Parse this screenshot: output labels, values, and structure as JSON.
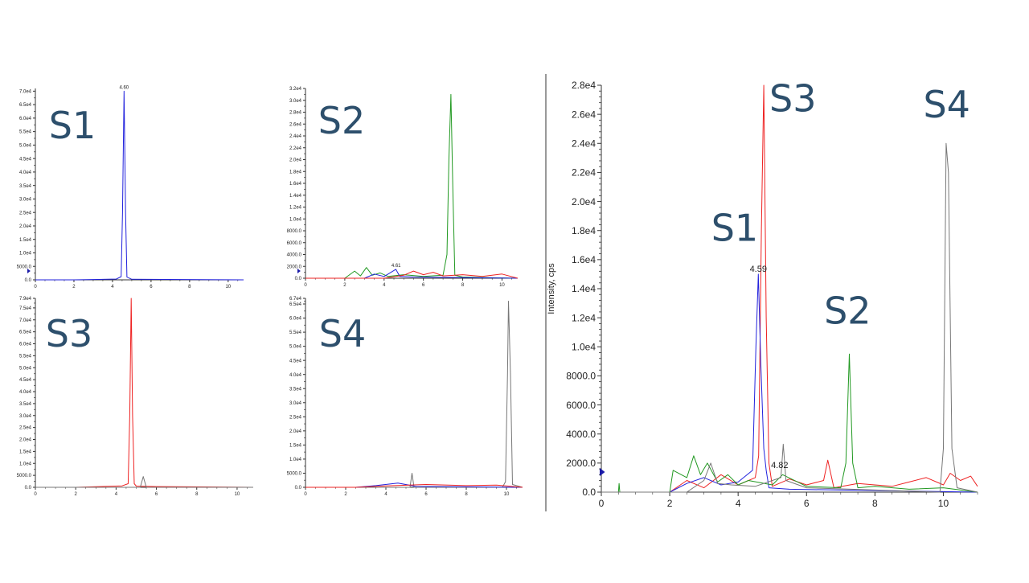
{
  "colors": {
    "S1": "#2222dd",
    "S2": "#229922",
    "S3": "#ee2222",
    "S4": "#777777",
    "label": "#2d4f6c",
    "axis": "#333333"
  },
  "chart_data": [
    {
      "id": "S1",
      "type": "line",
      "panel_label": "S1",
      "ylabel": "",
      "xlim": [
        0,
        10.8
      ],
      "ylim": [
        0,
        71000
      ],
      "yticks": [
        0,
        5000,
        10000,
        15000,
        20000,
        25000,
        30000,
        35000,
        40000,
        45000,
        50000,
        55000,
        60000,
        65000,
        70000
      ],
      "ytick_labels": [
        "0.0",
        "5000.0",
        "1.0e4",
        "1.5e4",
        "2.0e4",
        "2.5e4",
        "3.0e4",
        "3.5e4",
        "4.0e4",
        "4.5e4",
        "5.0e4",
        "5.5e4",
        "6.0e4",
        "6.5e4",
        "7.0e4"
      ],
      "xticks": [
        0,
        2,
        4,
        6,
        8,
        10
      ],
      "xtick_labels": [
        "0",
        "2",
        "4",
        "6",
        "8",
        "10"
      ],
      "series": [
        {
          "color_key": "S1",
          "x": [
            0,
            2.0,
            4.2,
            4.45,
            4.52,
            4.6,
            4.68,
            4.75,
            5.0,
            10.8
          ],
          "y": [
            0,
            0,
            300,
            1200,
            25000,
            70000,
            25000,
            1000,
            200,
            0
          ]
        }
      ],
      "annotations": [
        {
          "text": "4.60",
          "x": 4.6,
          "y": 70000
        }
      ]
    },
    {
      "id": "S2",
      "type": "line",
      "panel_label": "S2",
      "ylabel": "",
      "xlim": [
        0,
        10.8
      ],
      "ylim": [
        0,
        32000
      ],
      "yticks": [
        0,
        2000,
        4000,
        6000,
        8000,
        10000,
        12000,
        14000,
        16000,
        18000,
        20000,
        22000,
        24000,
        26000,
        28000,
        30000,
        32000
      ],
      "ytick_labels": [
        "0.0",
        "2000.0",
        "4000.0",
        "6000.0",
        "8000.0",
        "1.0e4",
        "1.2e4",
        "1.4e4",
        "1.6e4",
        "1.8e4",
        "2.0e4",
        "2.2e4",
        "2.4e4",
        "2.6e4",
        "2.8e4",
        "3.0e4",
        "3.2e4"
      ],
      "xticks": [
        0,
        2,
        4,
        6,
        8,
        10
      ],
      "xtick_labels": [
        "0",
        "2",
        "4",
        "6",
        "8",
        "10"
      ],
      "series": [
        {
          "color_key": "S2",
          "x": [
            0,
            2.0,
            2.5,
            2.8,
            3.1,
            3.4,
            3.8,
            4.2,
            5.0,
            6.0,
            7.0,
            7.2,
            7.3,
            7.4,
            7.5,
            7.6,
            8.0,
            10.8
          ],
          "y": [
            0,
            0,
            1200,
            400,
            1800,
            500,
            900,
            300,
            600,
            300,
            500,
            4000,
            20000,
            31000,
            15000,
            500,
            200,
            0
          ]
        },
        {
          "color_key": "S1",
          "x": [
            0,
            3.0,
            3.5,
            4.0,
            4.6,
            4.8,
            5.5,
            10.8
          ],
          "y": [
            0,
            0,
            700,
            300,
            1500,
            300,
            200,
            0
          ]
        },
        {
          "color_key": "S3",
          "x": [
            0,
            4.0,
            5.0,
            5.5,
            6.0,
            6.5,
            7.0,
            8.0,
            9.0,
            10.0,
            10.8
          ],
          "y": [
            0,
            0,
            500,
            1200,
            600,
            1000,
            400,
            600,
            300,
            700,
            0
          ]
        }
      ],
      "annotations": [
        {
          "text": "4.61",
          "x": 4.61,
          "y": 1500
        }
      ]
    },
    {
      "id": "S3",
      "type": "line",
      "panel_label": "S3",
      "ylabel": "",
      "xlim": [
        0,
        10.8
      ],
      "ylim": [
        0,
        79000
      ],
      "yticks": [
        0,
        5000,
        10000,
        15000,
        20000,
        25000,
        30000,
        35000,
        40000,
        45000,
        50000,
        55000,
        60000,
        65000,
        70000,
        75000,
        79000
      ],
      "ytick_labels": [
        "0.0",
        "5000.0",
        "1.0e4",
        "1.5e4",
        "2.0e4",
        "2.5e4",
        "3.0e4",
        "3.5e4",
        "4.0e4",
        "4.5e4",
        "5.0e4",
        "5.5e4",
        "6.0e4",
        "6.5e4",
        "7.0e4",
        "7.5e4",
        "7.9e4"
      ],
      "xticks": [
        0,
        2,
        4,
        6,
        8,
        10
      ],
      "xtick_labels": [
        "0",
        "2",
        "4",
        "6",
        "8",
        "10"
      ],
      "series": [
        {
          "color_key": "S3",
          "x": [
            0,
            2.0,
            4.3,
            4.6,
            4.68,
            4.75,
            4.82,
            4.9,
            5.0,
            6.0,
            10.8
          ],
          "y": [
            0,
            0,
            600,
            1500,
            30000,
            79000,
            30000,
            1500,
            500,
            300,
            0
          ]
        },
        {
          "color_key": "S4",
          "x": [
            0,
            5.2,
            5.35,
            5.5,
            10.8
          ],
          "y": [
            0,
            0,
            4500,
            0,
            0
          ]
        }
      ],
      "annotations": []
    },
    {
      "id": "S4",
      "type": "line",
      "panel_label": "S4",
      "ylabel": "",
      "xlim": [
        0,
        10.8
      ],
      "ylim": [
        0,
        67000
      ],
      "yticks": [
        0,
        5000,
        10000,
        15000,
        20000,
        25000,
        30000,
        35000,
        40000,
        45000,
        50000,
        55000,
        60000,
        65000,
        67000
      ],
      "ytick_labels": [
        "0.0",
        "5000.0",
        "1.0e4",
        "1.5e4",
        "2.0e4",
        "2.5e4",
        "3.0e4",
        "3.5e4",
        "4.0e4",
        "4.5e4",
        "5.0e4",
        "5.5e4",
        "6.0e4",
        "6.5e4",
        "6.7e4"
      ],
      "xticks": [
        0,
        2,
        4,
        6,
        8,
        10
      ],
      "xtick_labels": [
        "0",
        "2",
        "4",
        "6",
        "8",
        "10"
      ],
      "series": [
        {
          "color_key": "S4",
          "x": [
            0,
            5.2,
            5.3,
            5.4,
            9.8,
            9.95,
            10.05,
            10.1,
            10.2,
            10.3,
            10.8
          ],
          "y": [
            0,
            0,
            5000,
            0,
            0,
            2000,
            40000,
            66000,
            40000,
            1000,
            0
          ]
        },
        {
          "color_key": "S1",
          "x": [
            0,
            2.5,
            3.5,
            4.6,
            5.5,
            10.8
          ],
          "y": [
            0,
            0,
            600,
            1500,
            300,
            0
          ]
        },
        {
          "color_key": "S3",
          "x": [
            0,
            2.5,
            4.0,
            6.0,
            8.0,
            9.5,
            10.8
          ],
          "y": [
            0,
            0,
            500,
            1000,
            600,
            800,
            0
          ]
        }
      ],
      "annotations": []
    },
    {
      "id": "overlay",
      "type": "line",
      "panel_label": "",
      "ylabel": "Intensity, cps",
      "xlim": [
        0,
        11
      ],
      "ylim": [
        0,
        28000
      ],
      "yticks": [
        0,
        2000,
        4000,
        6000,
        8000,
        10000,
        12000,
        14000,
        16000,
        18000,
        20000,
        22000,
        24000,
        26000,
        28000
      ],
      "ytick_labels": [
        "0.0",
        "2000.0",
        "4000.0",
        "6000.0",
        "8000.0",
        "1.0e4",
        "1.2e4",
        "1.4e4",
        "1.6e4",
        "1.8e4",
        "2.0e4",
        "2.2e4",
        "2.4e4",
        "2.6e4",
        "2.8e4"
      ],
      "xticks": [
        0,
        2,
        4,
        6,
        8,
        10
      ],
      "xtick_labels": [
        "0",
        "2",
        "4",
        "6",
        "8",
        "10"
      ],
      "series": [
        {
          "color_key": "S3",
          "x": [
            0,
            2.0,
            2.5,
            3.0,
            3.5,
            4.0,
            4.5,
            4.6,
            4.68,
            4.75,
            4.82,
            4.9,
            5.0,
            5.5,
            6.0,
            6.5,
            6.62,
            6.8,
            7.5,
            8.5,
            9.0,
            9.5,
            10.0,
            10.2,
            10.5,
            10.8,
            11
          ],
          "y": [
            0,
            0,
            800,
            300,
            1200,
            500,
            1000,
            2500,
            18000,
            28000,
            12000,
            2000,
            400,
            900,
            500,
            800,
            2200,
            300,
            600,
            400,
            700,
            1000,
            500,
            1300,
            800,
            1100,
            400
          ]
        },
        {
          "color_key": "S1",
          "x": [
            0,
            2.0,
            2.5,
            3.0,
            3.5,
            4.0,
            4.42,
            4.52,
            4.59,
            4.66,
            4.75,
            4.82,
            4.9,
            5.5,
            11
          ],
          "y": [
            0,
            0,
            600,
            1000,
            500,
            700,
            1500,
            10000,
            15000,
            9000,
            3000,
            1500,
            300,
            200,
            0
          ]
        },
        {
          "color_key": "S2",
          "x": [
            0,
            0.5,
            0.52,
            0.54,
            2.0,
            2.1,
            2.5,
            2.7,
            2.9,
            3.1,
            3.4,
            3.7,
            4.0,
            4.3,
            5.0,
            5.3,
            6.0,
            7.0,
            7.15,
            7.25,
            7.35,
            7.5,
            8.0,
            9.0,
            10.0,
            11
          ],
          "y": [
            0,
            0,
            600,
            0,
            0,
            1500,
            1000,
            2500,
            1200,
            2000,
            700,
            1200,
            500,
            800,
            500,
            1200,
            400,
            300,
            2000,
            9500,
            2000,
            300,
            400,
            200,
            300,
            0
          ]
        },
        {
          "color_key": "S4",
          "x": [
            0,
            2.5,
            3.0,
            3.2,
            3.4,
            3.8,
            4.5,
            5.25,
            5.32,
            5.4,
            6.0,
            9.9,
            10.0,
            10.08,
            10.15,
            10.25,
            10.4,
            11
          ],
          "y": [
            0,
            0,
            800,
            2000,
            600,
            500,
            400,
            1000,
            3300,
            800,
            300,
            0,
            3000,
            24000,
            22000,
            3000,
            300,
            0
          ]
        }
      ],
      "annotations": [
        {
          "text": "4.59",
          "x": 4.59,
          "y": 15000
        },
        {
          "text": "4.82",
          "x": 4.82,
          "y": 1500
        }
      ],
      "peak_labels": [
        {
          "text": "S1",
          "x": 3.9,
          "y": 17300
        },
        {
          "text": "S2",
          "x": 7.2,
          "y": 11600
        },
        {
          "text": "S3",
          "x": 5.6,
          "y": 26200
        },
        {
          "text": "S4",
          "x": 10.1,
          "y": 25800
        }
      ]
    }
  ]
}
